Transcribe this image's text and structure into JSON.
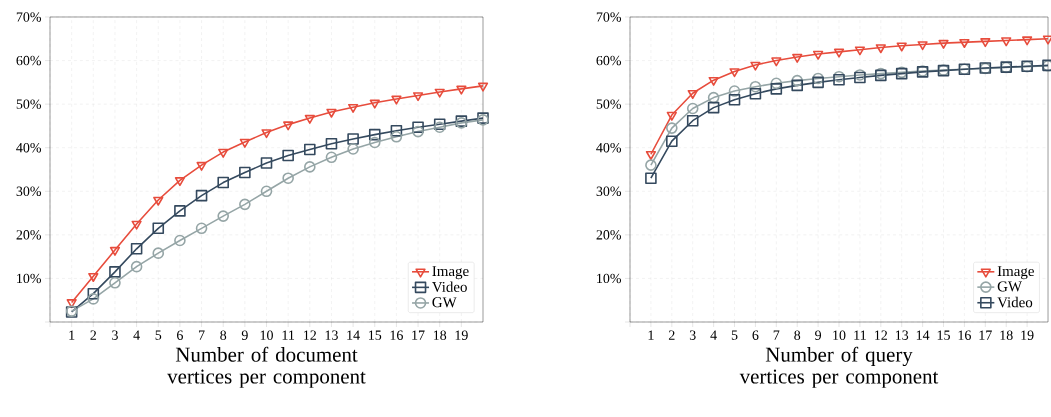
{
  "chart_data": [
    {
      "type": "line",
      "xlabel": "Number of document vertices per component",
      "x": [
        1,
        2,
        3,
        4,
        5,
        6,
        7,
        8,
        9,
        10,
        11,
        12,
        13,
        14,
        15,
        16,
        17,
        18,
        19,
        20
      ],
      "xlim": [
        0,
        20
      ],
      "ylim": [
        0,
        70
      ],
      "xticks": [
        {
          "value": 0,
          "label": null
        },
        1,
        2,
        3,
        4,
        5,
        6,
        7,
        8,
        9,
        10,
        11,
        12,
        13,
        14,
        15,
        16,
        17,
        18,
        19
      ],
      "yticks": [
        {
          "value": 0,
          "label": null
        },
        {
          "value": 10,
          "label": "10%"
        },
        {
          "value": 20,
          "label": "20%"
        },
        {
          "value": 30,
          "label": "30%"
        },
        {
          "value": 40,
          "label": "40%"
        },
        {
          "value": 50,
          "label": "50%"
        },
        {
          "value": 60,
          "label": "60%"
        },
        {
          "value": 70,
          "label": "70%"
        }
      ],
      "grid": true,
      "legend": "bottom right",
      "line_style": "solid",
      "series": [
        {
          "name": "Image",
          "color": "#e74c3c",
          "marker": "triangle",
          "values": [
            4.5,
            10.5,
            16.5,
            22.5,
            28,
            32.5,
            36,
            39,
            41.3,
            43.5,
            45.3,
            46.8,
            48.2,
            49.3,
            50.3,
            51.2,
            52,
            52.8,
            53.5,
            54.2
          ]
        },
        {
          "name": "Video",
          "color": "#34495e",
          "marker": "square",
          "values": [
            2.3,
            6.5,
            11.5,
            16.8,
            21.5,
            25.5,
            29,
            32,
            34.3,
            36.5,
            38.2,
            39.6,
            40.9,
            42,
            43,
            43.9,
            44.7,
            45.4,
            46.1,
            46.8
          ]
        },
        {
          "name": "GW",
          "color": "#95a5a6",
          "marker": "circle",
          "values": [
            2.5,
            5.3,
            9,
            12.7,
            15.8,
            18.7,
            21.5,
            24.3,
            27,
            30,
            33,
            35.6,
            37.8,
            39.7,
            41.2,
            42.5,
            43.7,
            44.7,
            45.7,
            46.4
          ]
        }
      ]
    },
    {
      "type": "line",
      "xlabel": "Number of query vertices per component",
      "x": [
        1,
        2,
        3,
        4,
        5,
        6,
        7,
        8,
        9,
        10,
        11,
        12,
        13,
        14,
        15,
        16,
        17,
        18,
        19,
        20
      ],
      "xlim": [
        0,
        20
      ],
      "ylim": [
        0,
        70
      ],
      "xticks": [
        {
          "value": 0,
          "label": null
        },
        1,
        2,
        3,
        4,
        5,
        6,
        7,
        8,
        9,
        10,
        11,
        12,
        13,
        14,
        15,
        16,
        17,
        18,
        19
      ],
      "yticks": [
        {
          "value": 0,
          "label": null
        },
        {
          "value": 10,
          "label": "10%"
        },
        {
          "value": 20,
          "label": "20%"
        },
        {
          "value": 30,
          "label": "30%"
        },
        {
          "value": 40,
          "label": "40%"
        },
        {
          "value": 50,
          "label": "50%"
        },
        {
          "value": 60,
          "label": "60%"
        },
        {
          "value": 70,
          "label": "70%"
        }
      ],
      "grid": true,
      "legend": "bottom right",
      "line_style": "solid",
      "series": [
        {
          "name": "Image",
          "color": "#e74c3c",
          "marker": "triangle",
          "values": [
            38.5,
            47.5,
            52.5,
            55.5,
            57.5,
            59,
            60,
            60.8,
            61.5,
            62,
            62.5,
            63,
            63.4,
            63.7,
            64,
            64.2,
            64.4,
            64.6,
            64.8,
            65
          ]
        },
        {
          "name": "GW",
          "color": "#95a5a6",
          "marker": "circle",
          "values": [
            36,
            44.5,
            49,
            51.5,
            53,
            54,
            54.8,
            55.4,
            55.9,
            56.3,
            56.7,
            57,
            57.3,
            57.6,
            57.8,
            58,
            58.2,
            58.4,
            58.6,
            58.8
          ]
        },
        {
          "name": "Video",
          "color": "#34495e",
          "marker": "square",
          "values": [
            33,
            41.5,
            46.2,
            49.2,
            51,
            52.4,
            53.5,
            54.3,
            55,
            55.6,
            56.1,
            56.6,
            57,
            57.4,
            57.7,
            58,
            58.3,
            58.5,
            58.7,
            58.9
          ]
        }
      ]
    }
  ]
}
